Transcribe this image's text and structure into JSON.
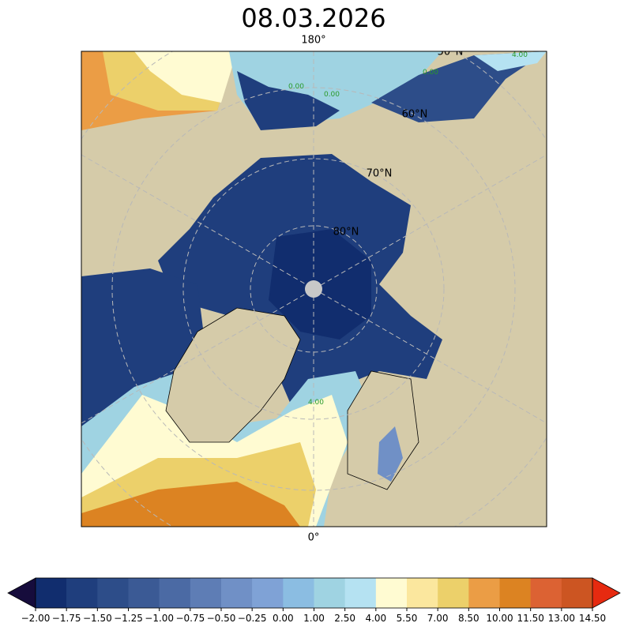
{
  "title": "08.03.2026",
  "map": {
    "lon_labels": [
      "180°",
      "0°"
    ],
    "lat_labels": [
      "50°N",
      "60°N",
      "70°N",
      "80°N"
    ],
    "contour_labels": [
      "4.00",
      "0.00",
      "0.00",
      "0.00",
      "4.00"
    ]
  },
  "colorbar": {
    "ticks": [
      {
        "value": -2,
        "label": "−2.00"
      },
      {
        "value": -1.75,
        "label": "−1.75"
      },
      {
        "value": -1.5,
        "label": "−1.50"
      },
      {
        "value": -1.25,
        "label": "−1.25"
      },
      {
        "value": -1,
        "label": "−1.00"
      },
      {
        "value": -0.75,
        "label": "−0.75"
      },
      {
        "value": -0.5,
        "label": "−0.50"
      },
      {
        "value": -0.25,
        "label": "−0.25"
      },
      {
        "value": 0,
        "label": "0.00"
      },
      {
        "value": 1,
        "label": "1.00"
      },
      {
        "value": 2.5,
        "label": "2.50"
      },
      {
        "value": 4,
        "label": "4.00"
      },
      {
        "value": 5.5,
        "label": "5.50"
      },
      {
        "value": 7,
        "label": "7.00"
      },
      {
        "value": 8.5,
        "label": "8.50"
      },
      {
        "value": 10,
        "label": "10.00"
      },
      {
        "value": 11.5,
        "label": "11.50"
      },
      {
        "value": 13,
        "label": "13.00"
      },
      {
        "value": 14.5,
        "label": "14.50"
      }
    ],
    "colors": [
      "#112d6e",
      "#1f3e7d",
      "#2d4d89",
      "#3b5a95",
      "#4b6aa4",
      "#5e7db5",
      "#7090c6",
      "#7fa2d6",
      "#8bbde2",
      "#9fd3e2",
      "#b5e2f2",
      "#fffbd2",
      "#fbe79e",
      "#ecd06a",
      "#eb9d45",
      "#dc8322",
      "#dc6233",
      "#cc5522"
    ],
    "under_color": "#160c3c",
    "over_color": "#e62a10"
  }
}
